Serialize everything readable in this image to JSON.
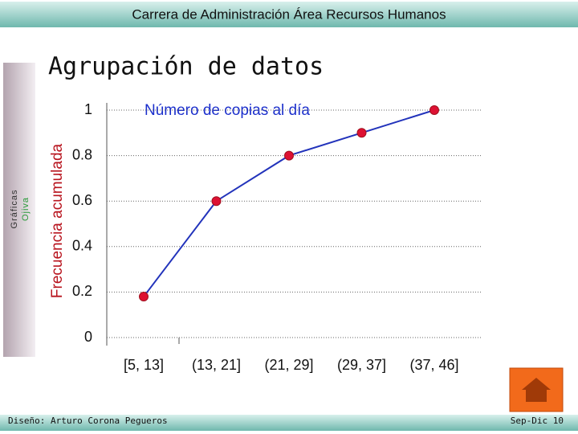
{
  "header": "Carrera de Administración Área Recursos Humanos",
  "sidebar": {
    "line1": "Gráficas",
    "line2": "Ojiva"
  },
  "slide_title": "Agrupación de datos",
  "chart_data": {
    "type": "line",
    "title": "Número de copias al día",
    "y_label": "Frecuencia acumulada",
    "categories": [
      "[5, 13]",
      "(13, 21]",
      "(21, 29]",
      "(29, 37]",
      "(37, 46]"
    ],
    "values": [
      0.18,
      0.6,
      0.8,
      0.9,
      1
    ],
    "color": "#2233bb",
    "marker_color": "#dd1133",
    "ylim": [
      0,
      1
    ],
    "yticks": [
      0,
      0.2,
      0.4,
      0.6,
      0.8,
      1
    ],
    "grid": true
  },
  "footer": {
    "author": "Diseño: Arturo Corona Pegueros",
    "date": "Sep-Dic 10"
  }
}
